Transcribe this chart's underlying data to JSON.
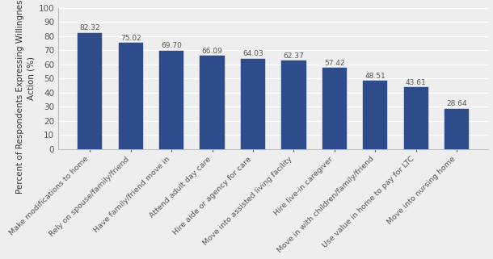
{
  "categories": [
    "Make modifications to home",
    "Rely on spouse/family/friend",
    "Have family/friend move in",
    "Attend adult day care",
    "Hire aide or agency for care",
    "Move into assisted living facility",
    "Hire live-in caregiver",
    "Move in with children/family/friend",
    "Use value in home to pay for LTC",
    "Move into nursing home"
  ],
  "values": [
    82.32,
    75.02,
    69.7,
    66.09,
    64.03,
    62.37,
    57.42,
    48.51,
    43.61,
    28.64
  ],
  "bar_color": "#2E4C8C",
  "ylabel": "Percent of Respondents Expressing Willingness to Take\nAction (%)",
  "ylim": [
    0,
    100
  ],
  "yticks": [
    0,
    10,
    20,
    30,
    40,
    50,
    60,
    70,
    80,
    90,
    100
  ],
  "value_label_fontsize": 6.5,
  "ylabel_fontsize": 7.5,
  "xlabel_fontsize": 6.8,
  "background_color": "#eeeeee",
  "grid_color": "#ffffff",
  "bar_edge_color": "#2E4C8C"
}
